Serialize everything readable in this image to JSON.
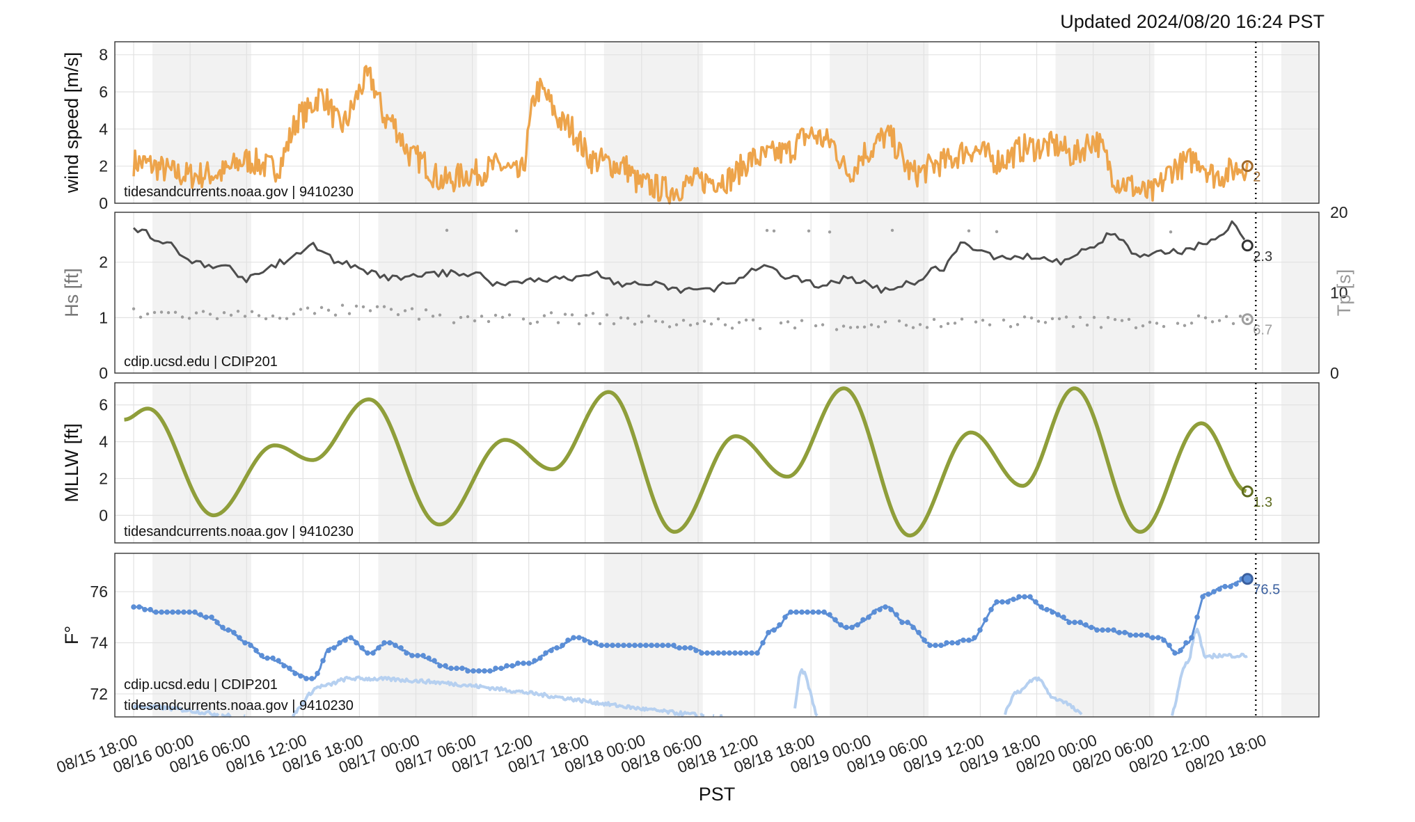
{
  "updated": "Updated 2024/08/20 16:24 PST",
  "xlabel": "PST",
  "colors": {
    "wind": "#eda44b",
    "hs": "#4d4d4d",
    "tp": "#9e9e9e",
    "tide": "#8f9e3a",
    "temp_water": "#5b8ed6",
    "temp_air": "#b6d0f0",
    "night": "#f2f2f2"
  },
  "chart_data": [
    {
      "type": "line",
      "ylabel": "wind speed [m/s]",
      "source": "tidesandcurrents.noaa.gov | 9410230",
      "ylim": [
        0,
        8.7
      ],
      "yticks": [
        0,
        2,
        4,
        6,
        8
      ],
      "last_value_label": "2",
      "series": [
        {
          "x": [
            "2024-08-15 18:00",
            "2024-08-16 00:00",
            "2024-08-16 03:00",
            "2024-08-16 06:00",
            "2024-08-16 09:00",
            "2024-08-16 12:00",
            "2024-08-16 14:00",
            "2024-08-16 16:00",
            "2024-08-16 19:00",
            "2024-08-16 21:00",
            "2024-08-17 00:00",
            "2024-08-17 03:00",
            "2024-08-17 06:00",
            "2024-08-17 09:00",
            "2024-08-17 11:00",
            "2024-08-17 13:00",
            "2024-08-17 16:00",
            "2024-08-17 19:00",
            "2024-08-17 22:00",
            "2024-08-18 00:00",
            "2024-08-18 03:00",
            "2024-08-18 06:00",
            "2024-08-18 09:00",
            "2024-08-18 12:00",
            "2024-08-18 15:00",
            "2024-08-18 18:00",
            "2024-08-18 20:00",
            "2024-08-18 22:00",
            "2024-08-19 00:00",
            "2024-08-19 02:00",
            "2024-08-19 05:00",
            "2024-08-19 08:00",
            "2024-08-19 11:00",
            "2024-08-19 14:00",
            "2024-08-19 17:00",
            "2024-08-19 20:00",
            "2024-08-19 22:00",
            "2024-08-20 00:00",
            "2024-08-20 03:00",
            "2024-08-20 06:00",
            "2024-08-20 09:00",
            "2024-08-20 11:00",
            "2024-08-20 13:00",
            "2024-08-20 16:24"
          ],
          "values": [
            2.2,
            1.5,
            1.6,
            2.3,
            1.9,
            4.8,
            5.8,
            4.2,
            6.7,
            4.5,
            2.4,
            1.2,
            1.6,
            2.0,
            1.5,
            6.1,
            4.2,
            2.3,
            2.0,
            1.0,
            0.7,
            1.2,
            1.3,
            2.4,
            2.7,
            3.7,
            3.3,
            1.7,
            2.8,
            3.6,
            1.6,
            2.2,
            2.9,
            2.3,
            3.0,
            3.1,
            2.6,
            3.4,
            1.1,
            0.5,
            2.0,
            2.4,
            1.5,
            2.0
          ]
        }
      ]
    },
    {
      "type": "line",
      "ylabel": "Hs [ft]",
      "y2label": "Tp [s]",
      "source": "cdip.ucsd.edu | CDIP201",
      "ylim": [
        0,
        2.9
      ],
      "yticks": [
        0,
        1,
        2
      ],
      "y2lim": [
        0,
        20
      ],
      "y2ticks": [
        0,
        10,
        20
      ],
      "last_value_label": "2.3",
      "last_value_label2": "6.7",
      "series": [
        {
          "name": "Hs",
          "x": [
            "2024-08-15 18:00",
            "2024-08-15 22:00",
            "2024-08-16 00:00",
            "2024-08-16 04:00",
            "2024-08-16 06:00",
            "2024-08-16 10:00",
            "2024-08-16 13:00",
            "2024-08-16 16:00",
            "2024-08-16 19:00",
            "2024-08-16 22:00",
            "2024-08-17 02:00",
            "2024-08-17 06:00",
            "2024-08-17 09:00",
            "2024-08-17 13:00",
            "2024-08-17 17:00",
            "2024-08-17 19:00",
            "2024-08-17 22:00",
            "2024-08-18 01:00",
            "2024-08-18 04:00",
            "2024-08-18 07:00",
            "2024-08-18 09:00",
            "2024-08-18 13:00",
            "2024-08-18 16:00",
            "2024-08-18 19:00",
            "2024-08-18 22:00",
            "2024-08-19 02:00",
            "2024-08-19 04:00",
            "2024-08-19 08:00",
            "2024-08-19 10:00",
            "2024-08-19 14:00",
            "2024-08-19 18:00",
            "2024-08-19 21:00",
            "2024-08-20 00:00",
            "2024-08-20 02:00",
            "2024-08-20 05:00",
            "2024-08-20 09:00",
            "2024-08-20 13:00",
            "2024-08-20 15:00",
            "2024-08-20 16:24"
          ],
          "values": [
            2.6,
            2.3,
            2.0,
            1.9,
            1.7,
            2.0,
            2.3,
            2.0,
            1.8,
            1.7,
            1.8,
            1.8,
            1.6,
            1.7,
            1.7,
            1.8,
            1.6,
            1.6,
            1.5,
            1.5,
            1.6,
            1.9,
            1.7,
            1.6,
            1.7,
            1.5,
            1.6,
            1.9,
            2.3,
            2.1,
            2.1,
            2.0,
            2.3,
            2.5,
            2.1,
            2.2,
            2.4,
            2.7,
            2.3
          ]
        },
        {
          "name": "Tp",
          "x": [
            "2024-08-15 18:00",
            "2024-08-16 06:00",
            "2024-08-16 18:00",
            "2024-08-17 06:00",
            "2024-08-17 18:00",
            "2024-08-18 06:00",
            "2024-08-18 18:00",
            "2024-08-19 06:00",
            "2024-08-19 18:00",
            "2024-08-20 06:00",
            "2024-08-20 16:24"
          ],
          "values": [
            7.4,
            7.2,
            7.8,
            6.9,
            6.8,
            6.2,
            6.0,
            6.1,
            6.4,
            6.3,
            6.7
          ]
        }
      ]
    },
    {
      "type": "line",
      "ylabel": "MLLW [ft]",
      "source": "tidesandcurrents.noaa.gov | 9410230",
      "ylim": [
        -1.5,
        7.2
      ],
      "yticks": [
        0,
        2,
        4,
        6
      ],
      "last_value_label": "1.3",
      "series": [
        {
          "x": [
            "2024-08-15 17:00",
            "2024-08-15 19:30",
            "2024-08-16 02:30",
            "2024-08-16 09:00",
            "2024-08-16 13:00",
            "2024-08-16 19:00",
            "2024-08-17 02:30",
            "2024-08-17 09:30",
            "2024-08-17 14:30",
            "2024-08-17 20:30",
            "2024-08-18 03:30",
            "2024-08-18 10:00",
            "2024-08-18 15:30",
            "2024-08-18 21:30",
            "2024-08-19 04:30",
            "2024-08-19 11:00",
            "2024-08-19 16:30",
            "2024-08-19 22:00",
            "2024-08-20 05:00",
            "2024-08-20 11:30",
            "2024-08-20 16:24"
          ],
          "values": [
            5.2,
            5.8,
            0.0,
            3.8,
            3.0,
            6.3,
            -0.5,
            4.1,
            2.5,
            6.7,
            -0.9,
            4.3,
            2.1,
            6.9,
            -1.1,
            4.5,
            1.6,
            6.9,
            -0.9,
            5.0,
            1.3
          ]
        }
      ]
    },
    {
      "type": "line",
      "ylabel": "F°",
      "source": "cdip.ucsd.edu | CDIP201",
      "source2": "tidesandcurrents.noaa.gov | 9410230",
      "ylim": [
        71.1,
        77.5
      ],
      "yticks": [
        72,
        74,
        76
      ],
      "last_value_label": "76.5",
      "series": [
        {
          "name": "water",
          "x": [
            "2024-08-15 18:00",
            "2024-08-15 21:00",
            "2024-08-16 00:00",
            "2024-08-16 02:00",
            "2024-08-16 04:00",
            "2024-08-16 06:00",
            "2024-08-16 08:00",
            "2024-08-16 13:00",
            "2024-08-16 15:00",
            "2024-08-16 17:00",
            "2024-08-16 19:00",
            "2024-08-16 21:00",
            "2024-08-17 00:00",
            "2024-08-17 04:00",
            "2024-08-17 07:00",
            "2024-08-17 12:00",
            "2024-08-17 15:00",
            "2024-08-17 17:00",
            "2024-08-17 20:00",
            "2024-08-18 02:00",
            "2024-08-18 05:00",
            "2024-08-18 07:00",
            "2024-08-18 12:00",
            "2024-08-18 14:00",
            "2024-08-18 16:00",
            "2024-08-18 19:00",
            "2024-08-18 22:00",
            "2024-08-19 02:00",
            "2024-08-19 04:00",
            "2024-08-19 07:00",
            "2024-08-19 11:00",
            "2024-08-19 14:00",
            "2024-08-19 17:00",
            "2024-08-19 19:00",
            "2024-08-19 22:00",
            "2024-08-20 01:00",
            "2024-08-20 05:00",
            "2024-08-20 07:00",
            "2024-08-20 09:00",
            "2024-08-20 10:00",
            "2024-08-20 12:00",
            "2024-08-20 14:00",
            "2024-08-20 16:24"
          ],
          "values": [
            75.4,
            75.2,
            75.2,
            75.0,
            74.5,
            74.0,
            73.4,
            72.6,
            73.8,
            74.2,
            73.6,
            74.0,
            73.5,
            73.0,
            72.9,
            73.2,
            73.8,
            74.2,
            73.9,
            73.9,
            73.8,
            73.6,
            73.6,
            74.5,
            75.2,
            75.2,
            74.6,
            75.4,
            74.8,
            73.9,
            74.1,
            75.6,
            75.8,
            75.3,
            74.8,
            74.5,
            74.3,
            74.2,
            73.6,
            74.0,
            75.9,
            76.2,
            76.5
          ]
        },
        {
          "name": "air",
          "x": [
            "2024-08-15 18:00",
            "2024-08-16 10:00",
            "2024-08-16 14:00",
            "2024-08-16 17:00",
            "2024-08-18 16:00",
            "2024-08-18 17:00",
            "2024-08-18 19:00",
            "2024-08-19 14:00",
            "2024-08-19 16:00",
            "2024-08-19 18:00",
            "2024-08-19 20:00",
            "2024-08-20 00:00",
            "2024-08-20 08:00",
            "2024-08-20 10:00",
            "2024-08-20 11:00",
            "2024-08-20 12:00",
            "2024-08-20 13:00",
            "2024-08-20 16:24"
          ],
          "values": [
            71.5,
            71.0,
            72.3,
            72.6,
            71.0,
            72.9,
            71.0,
            71.0,
            72.1,
            72.6,
            71.8,
            71.0,
            71.0,
            73.2,
            74.5,
            73.4,
            73.5,
            73.5
          ]
        }
      ]
    }
  ],
  "xaxis": {
    "ticks": [
      "08/15 18:00",
      "08/16 00:00",
      "08/16 06:00",
      "08/16 12:00",
      "08/16 18:00",
      "08/17 00:00",
      "08/17 06:00",
      "08/17 12:00",
      "08/17 18:00",
      "08/18 00:00",
      "08/18 06:00",
      "08/18 12:00",
      "08/18 18:00",
      "08/19 00:00",
      "08/19 06:00",
      "08/19 12:00",
      "08/19 18:00",
      "08/20 00:00",
      "08/20 06:00",
      "08/20 12:00",
      "08/20 18:00"
    ]
  }
}
